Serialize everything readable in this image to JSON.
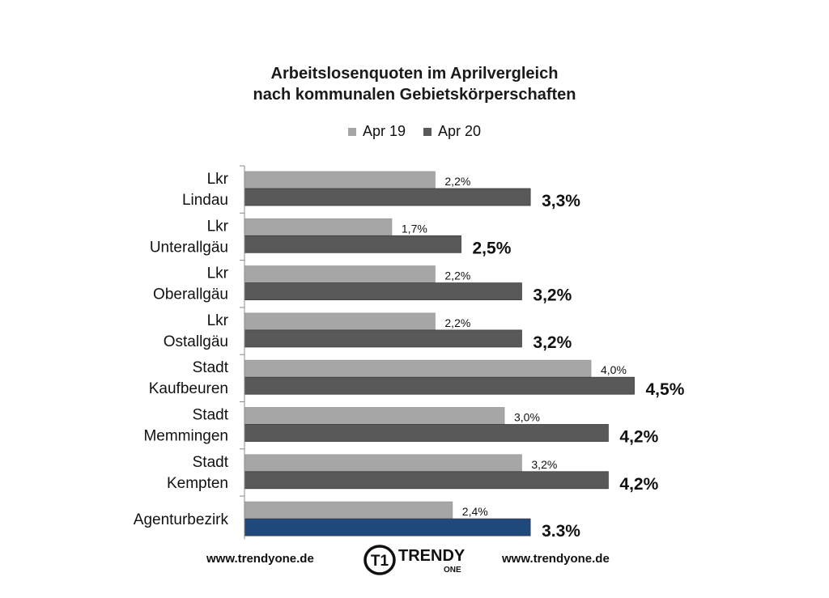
{
  "chart_data": {
    "type": "bar",
    "orientation": "horizontal",
    "title_line1": "Arbeitslosenquoten im Aprilvergleich",
    "title_line2": "nach kommunalen  Gebietskörperschaften",
    "categories": [
      [
        "Lkr",
        "Lindau"
      ],
      [
        "Lkr",
        "Unterallgäu"
      ],
      [
        "Lkr",
        "Oberallgäu"
      ],
      [
        "Lkr",
        "Ostallgäu"
      ],
      [
        "Stadt",
        "Kaufbeuren"
      ],
      [
        "Stadt",
        "Memmingen"
      ],
      [
        "Stadt",
        "Kempten"
      ],
      [
        "Agenturbezirk"
      ]
    ],
    "series": [
      {
        "name": "Apr 19",
        "color": "#a6a6a6",
        "values": [
          2.2,
          1.7,
          2.2,
          2.2,
          4.0,
          3.0,
          3.2,
          2.4
        ],
        "labels": [
          "2,2%",
          "1,7%",
          "2,2%",
          "2,2%",
          "4,0%",
          "3,0%",
          "3,2%",
          "2,4%"
        ]
      },
      {
        "name": "Apr 20",
        "color": "#595959",
        "highlight_color": "#1f497d",
        "values": [
          3.3,
          2.5,
          3.2,
          3.2,
          4.5,
          4.2,
          4.2,
          3.3
        ],
        "labels": [
          "3,3%",
          "2,5%",
          "3,2%",
          "3,2%",
          "4,5%",
          "4,2%",
          "4,2%",
          "3.3%"
        ]
      }
    ],
    "xlim": [
      0,
      5
    ],
    "legend_position": "top",
    "grid": false
  },
  "footer": {
    "url_left": "www.trendyone.de",
    "url_right": "www.trendyone.de",
    "logo_text": "TRENDY",
    "logo_subtext": "ONE",
    "logo_mark": "T1"
  }
}
